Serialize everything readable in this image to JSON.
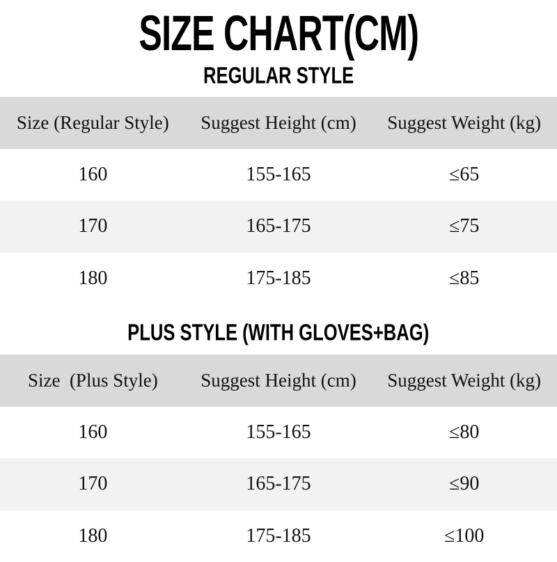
{
  "title": "SIZE CHART(CM)",
  "sections": [
    {
      "heading": "REGULAR STYLE",
      "headers": [
        "Size (Regular Style)",
        "Suggest Height (cm)",
        "Suggest Weight (kg)"
      ],
      "rows": [
        [
          "160",
          "155-165",
          "≤65"
        ],
        [
          "170",
          "165-175",
          "≤75"
        ],
        [
          "180",
          "175-185",
          "≤85"
        ]
      ]
    },
    {
      "heading": "PLUS STYLE (WITH GLOVES+BAG)",
      "headers": [
        "Size  (Plus Style)",
        "Suggest Height (cm)",
        "Suggest Weight (kg)"
      ],
      "rows": [
        [
          "160",
          "155-165",
          "≤80"
        ],
        [
          "170",
          "165-175",
          "≤90"
        ],
        [
          "180",
          "175-185",
          "≤100"
        ]
      ]
    }
  ],
  "colors": {
    "header_bg": "#d9d9d9",
    "alt_row_bg": "#f2f2f2"
  }
}
